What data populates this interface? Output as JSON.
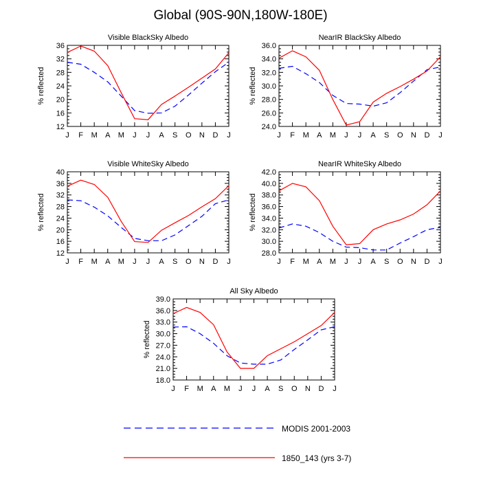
{
  "title": "Global (90S-90N,180W-180E)",
  "legend": {
    "modis_label": "MODIS 2001-2003",
    "model_label": "1850_143 (yrs 3-7)",
    "modis_color": "#0000ff",
    "model_color": "#ff0000"
  },
  "chart_data": [
    {
      "type": "line",
      "title": "Visible BlackSky Albedo",
      "ylabel": "% reflected",
      "categories": [
        "J",
        "F",
        "M",
        "A",
        "M",
        "J",
        "J",
        "A",
        "S",
        "O",
        "N",
        "D",
        "J"
      ],
      "ylim": [
        12,
        36
      ],
      "yticks": [
        "12",
        "16",
        "20",
        "24",
        "28",
        "32",
        "36"
      ],
      "series": [
        {
          "name": "MODIS 2001-2003",
          "values": [
            31.0,
            30.4,
            28.0,
            25.2,
            21.0,
            16.7,
            15.9,
            16.0,
            18.0,
            21.3,
            24.8,
            28.2,
            31.0
          ]
        },
        {
          "name": "1850_143 (yrs 3-7)",
          "values": [
            33.9,
            35.8,
            34.3,
            30.0,
            22.0,
            14.3,
            14.0,
            18.5,
            21.0,
            23.6,
            26.3,
            29.0,
            33.8
          ]
        }
      ]
    },
    {
      "type": "line",
      "title": "NearIR BlackSky Albedo",
      "ylabel": "% reflected",
      "categories": [
        "J",
        "F",
        "M",
        "A",
        "M",
        "J",
        "J",
        "A",
        "S",
        "O",
        "N",
        "D",
        "J"
      ],
      "ylim": [
        24,
        36
      ],
      "yticks": [
        "24.0",
        "26.0",
        "28.0",
        "30.0",
        "32.0",
        "34.0",
        "36.0"
      ],
      "series": [
        {
          "name": "MODIS 2001-2003",
          "values": [
            32.6,
            32.9,
            31.8,
            30.5,
            28.6,
            27.4,
            27.3,
            27.0,
            27.5,
            29.0,
            30.7,
            32.4,
            32.8
          ]
        },
        {
          "name": "1850_143 (yrs 3-7)",
          "values": [
            34.1,
            35.2,
            34.3,
            32.3,
            28.0,
            24.2,
            24.7,
            27.6,
            28.9,
            29.9,
            31.0,
            32.2,
            34.3
          ]
        }
      ]
    },
    {
      "type": "line",
      "title": "Visible WhiteSky Albedo",
      "ylabel": "% reflected",
      "categories": [
        "J",
        "F",
        "M",
        "A",
        "M",
        "J",
        "J",
        "A",
        "S",
        "O",
        "N",
        "D",
        "J"
      ],
      "ylim": [
        12,
        40
      ],
      "yticks": [
        "12",
        "16",
        "20",
        "24",
        "28",
        "32",
        "36",
        "40"
      ],
      "series": [
        {
          "name": "MODIS 2001-2003",
          "values": [
            30.3,
            30.0,
            27.8,
            24.8,
            20.8,
            17.0,
            16.2,
            16.2,
            18.2,
            21.4,
            24.6,
            29.0,
            30.3
          ]
        },
        {
          "name": "1850_143 (yrs 3-7)",
          "values": [
            35.0,
            37.1,
            35.6,
            31.2,
            22.9,
            15.9,
            15.6,
            19.8,
            22.4,
            24.9,
            27.9,
            30.7,
            35.2
          ]
        }
      ]
    },
    {
      "type": "line",
      "title": "NearIR WhiteSky Albedo",
      "ylabel": "% reflected",
      "categories": [
        "J",
        "F",
        "M",
        "A",
        "M",
        "J",
        "J",
        "A",
        "S",
        "O",
        "N",
        "D",
        "J"
      ],
      "ylim": [
        28,
        42
      ],
      "yticks": [
        "28.0",
        "30.0",
        "32.0",
        "34.0",
        "36.0",
        "38.0",
        "40.0",
        "42.0"
      ],
      "series": [
        {
          "name": "MODIS 2001-2003",
          "values": [
            32.3,
            33.0,
            32.6,
            31.5,
            30.0,
            29.0,
            28.9,
            28.5,
            28.5,
            29.7,
            30.8,
            32.0,
            32.4
          ]
        },
        {
          "name": "1850_143 (yrs 3-7)",
          "values": [
            38.7,
            40.0,
            39.4,
            37.0,
            32.6,
            29.4,
            29.6,
            32.0,
            33.0,
            33.7,
            34.7,
            36.3,
            38.7
          ]
        }
      ]
    },
    {
      "type": "line",
      "title": "All Sky Albedo",
      "ylabel": "% reflected",
      "categories": [
        "J",
        "F",
        "M",
        "A",
        "M",
        "J",
        "J",
        "A",
        "S",
        "O",
        "N",
        "D",
        "J"
      ],
      "ylim": [
        18,
        39
      ],
      "yticks": [
        "18.0",
        "21.0",
        "24.0",
        "27.0",
        "30.0",
        "33.0",
        "36.0",
        "39.0"
      ],
      "series": [
        {
          "name": "MODIS 2001-2003",
          "values": [
            31.7,
            31.8,
            30.0,
            27.5,
            24.3,
            22.4,
            22.1,
            22.1,
            23.2,
            25.9,
            28.4,
            31.0,
            31.8
          ]
        },
        {
          "name": "1850_143 (yrs 3-7)",
          "values": [
            35.2,
            36.8,
            35.5,
            32.3,
            25.3,
            21.0,
            21.0,
            24.3,
            26.1,
            27.9,
            30.0,
            32.1,
            35.5
          ]
        }
      ]
    }
  ]
}
